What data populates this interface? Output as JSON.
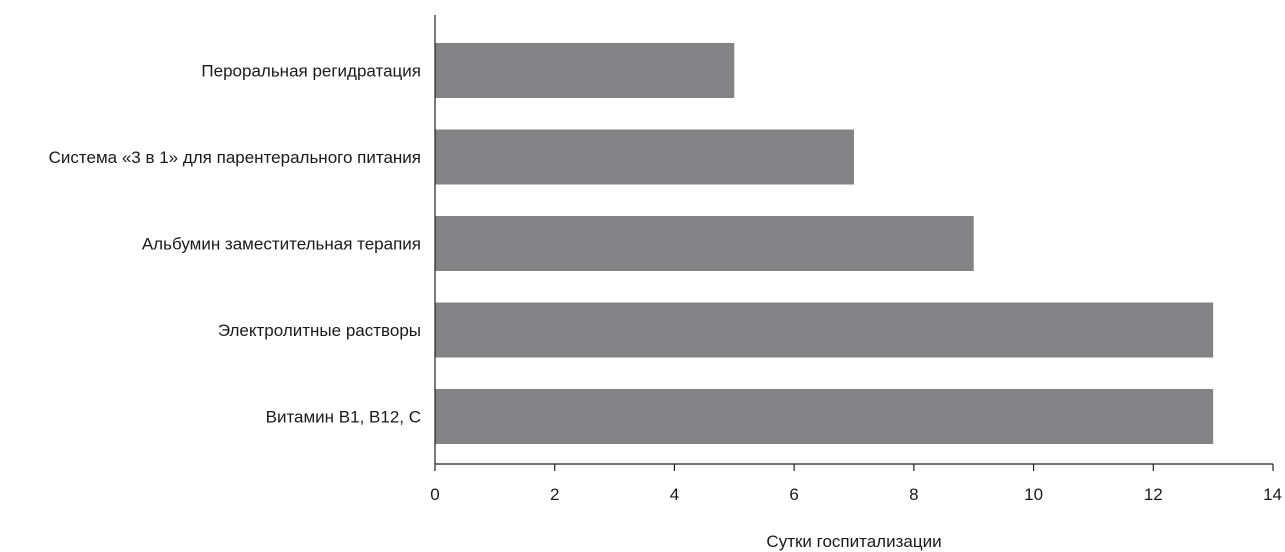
{
  "chart_data": {
    "type": "bar",
    "orientation": "horizontal",
    "categories": [
      "Пероральная регидратация",
      "Система «3 в 1» для парентерального питания",
      "Альбумин заместительная терапия",
      "Электролитные растворы",
      "Витамин В1, В12, С"
    ],
    "values": [
      5,
      7,
      9,
      13,
      13
    ],
    "xlabel": "Сутки госпитализации",
    "ylabel": "",
    "xlim": [
      0,
      14
    ],
    "xticks": [
      "0",
      "2",
      "4",
      "6",
      "8",
      "10",
      "12",
      "14"
    ],
    "grid": false,
    "legend": "none",
    "bar_color": "#838386"
  }
}
